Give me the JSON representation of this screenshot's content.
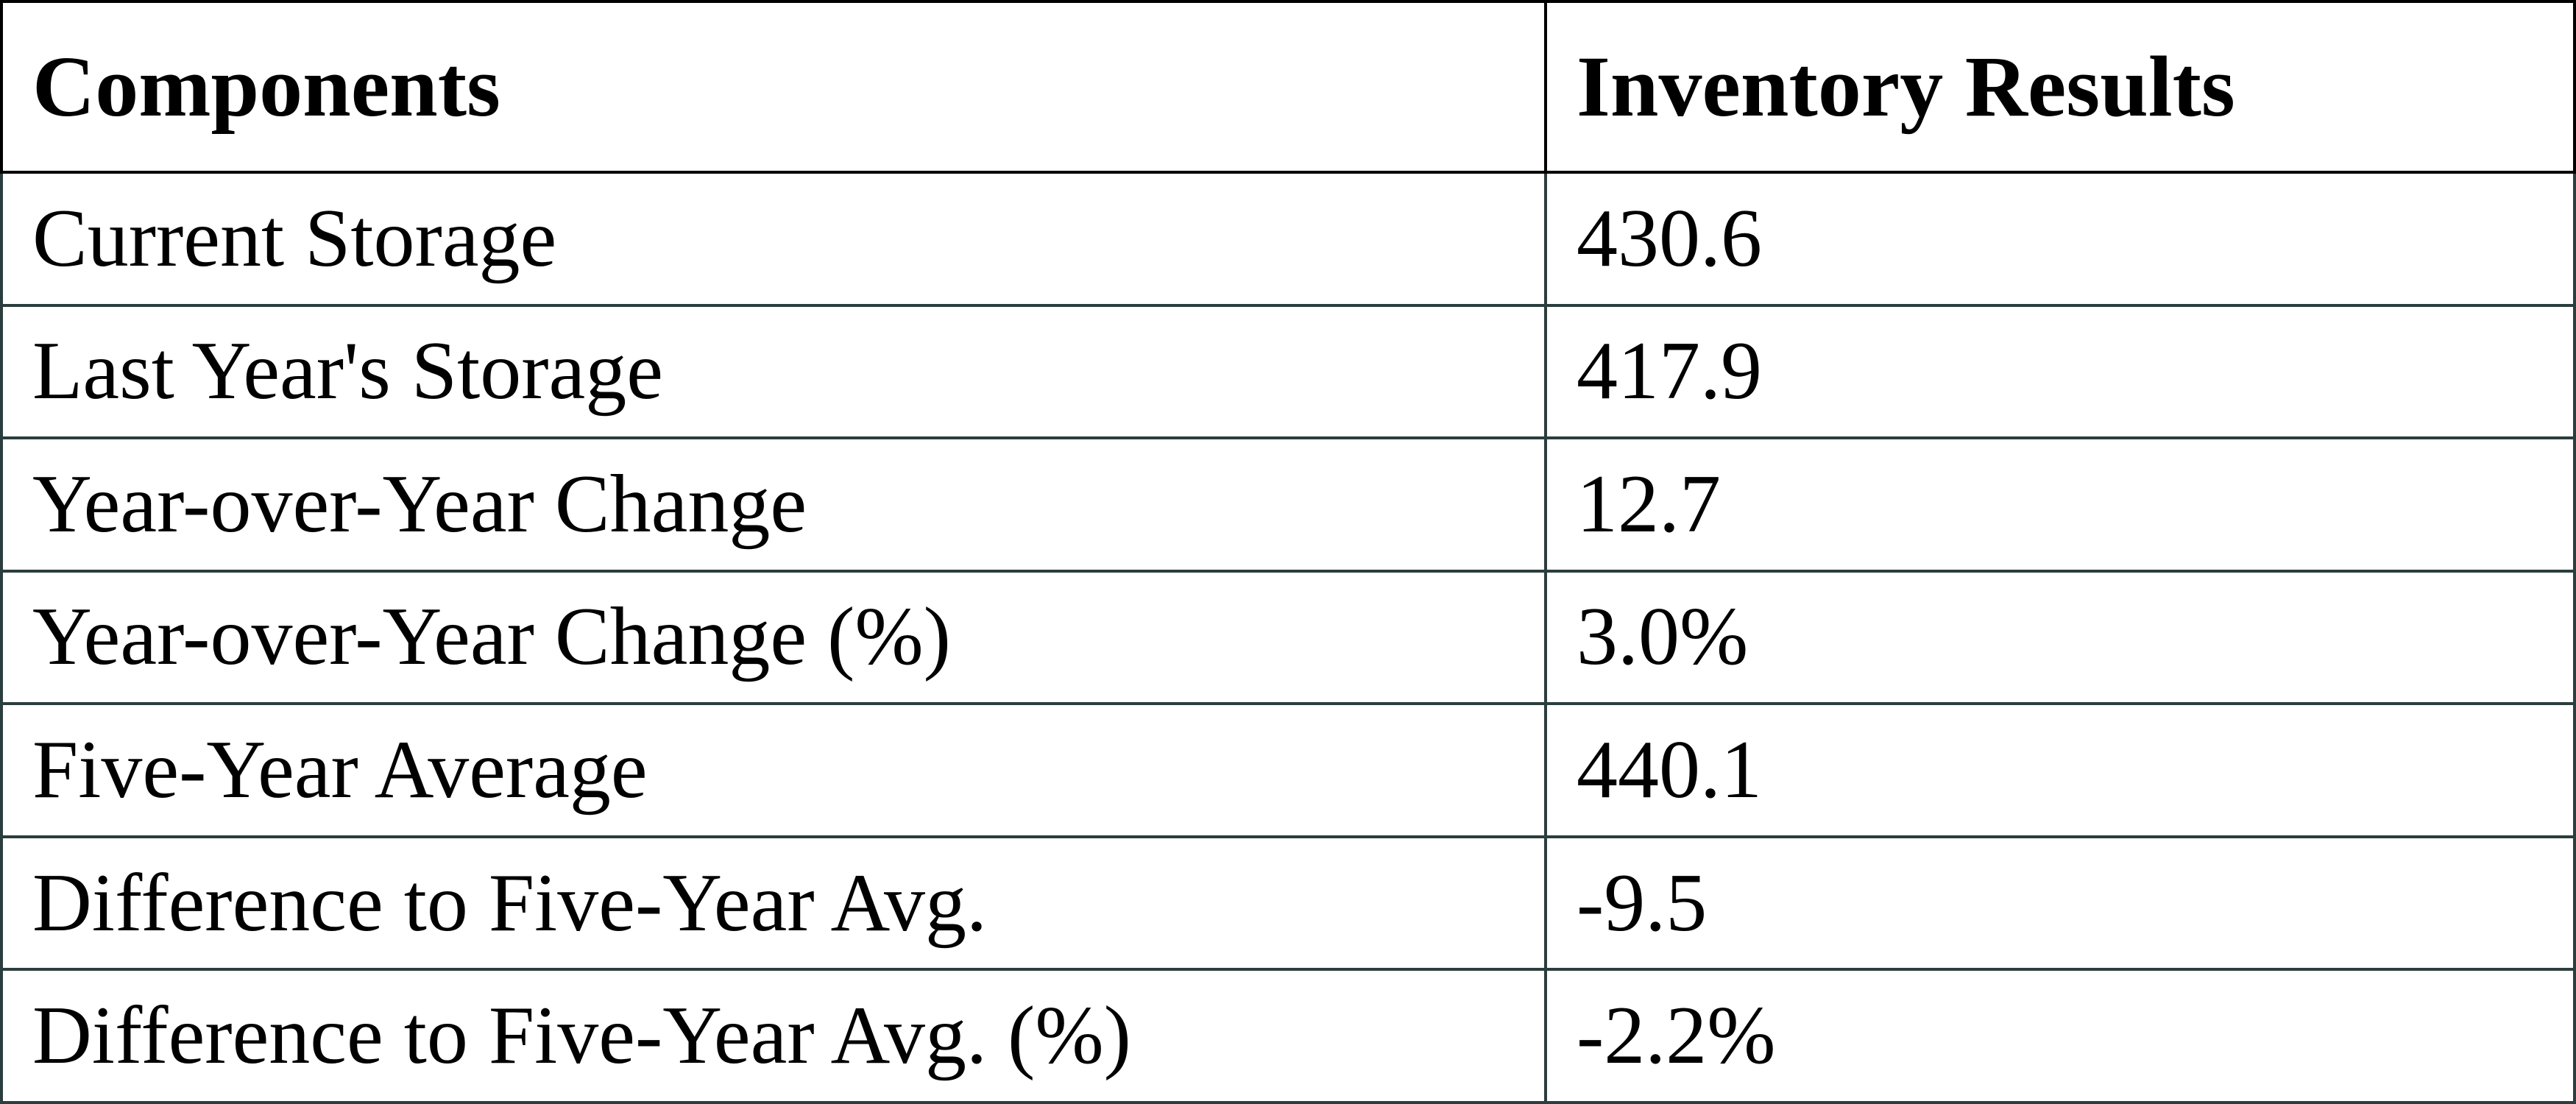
{
  "table": {
    "header": [
      "Components",
      "Inventory Results"
    ],
    "rows": [
      [
        "Current Storage",
        "430.6"
      ],
      [
        "Last Year's Storage",
        "417.9"
      ],
      [
        "Year-over-Year Change",
        "12.7"
      ],
      [
        "Year-over-Year Change (%)",
        "3.0%"
      ],
      [
        "Five-Year Average",
        "440.1"
      ],
      [
        "Difference to Five-Year Avg.",
        "-9.5"
      ],
      [
        "Difference to Five-Year Avg. (%)",
        "-2.2%"
      ]
    ]
  }
}
